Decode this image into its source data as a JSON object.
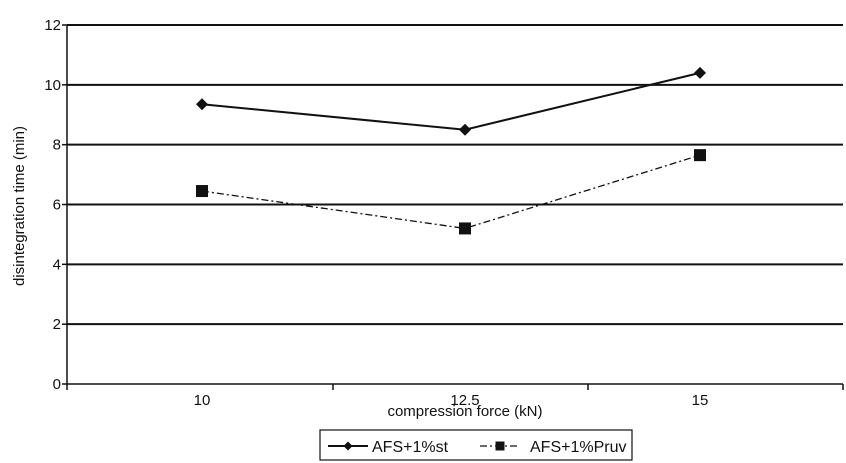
{
  "chart_data": {
    "type": "line",
    "title": "",
    "xlabel": "compression force (kN)",
    "ylabel": "disintegration time (min)",
    "categories": [
      "10",
      "12.5",
      "15"
    ],
    "ylim": [
      0,
      12
    ],
    "yticks": [
      0,
      2,
      4,
      6,
      8,
      10,
      12
    ],
    "grid": "horizontal",
    "legend_position": "bottom-center",
    "series": [
      {
        "name": "AFS+1%st",
        "values": [
          9.35,
          8.5,
          10.4
        ],
        "marker": "diamond",
        "line_style": "solid",
        "color": "#111111"
      },
      {
        "name": "AFS+1%Pruv",
        "values": [
          6.45,
          5.2,
          7.65
        ],
        "marker": "square",
        "line_style": "dashdot",
        "color": "#111111"
      }
    ]
  }
}
